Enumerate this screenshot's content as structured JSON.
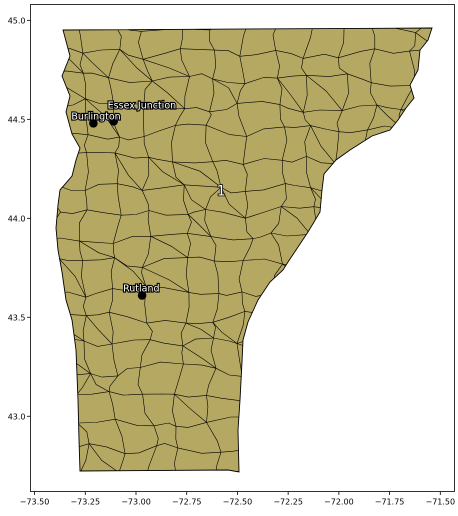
{
  "map": {
    "state_fill": "#b5a862",
    "boundary_color": "#000000",
    "x_ticks": [
      "−73.50",
      "−73.25",
      "−73.00",
      "−72.75",
      "−72.50",
      "−72.25",
      "−72.00",
      "−71.75",
      "−71.50"
    ],
    "y_ticks": [
      "43.0",
      "43.5",
      "44.0",
      "44.5",
      "45.0"
    ],
    "x_range": [
      -73.52,
      -71.43
    ],
    "y_range": [
      42.62,
      45.08
    ],
    "cities": [
      {
        "name": "Essex Junction",
        "lon": -73.11,
        "lat": 44.49
      },
      {
        "name": "Burlington",
        "lon": -73.21,
        "lat": 44.48
      },
      {
        "name": "Rutland",
        "lon": -72.97,
        "lat": 43.61
      }
    ],
    "district_label": "1",
    "district_lon": -72.58,
    "district_lat": 44.14
  }
}
